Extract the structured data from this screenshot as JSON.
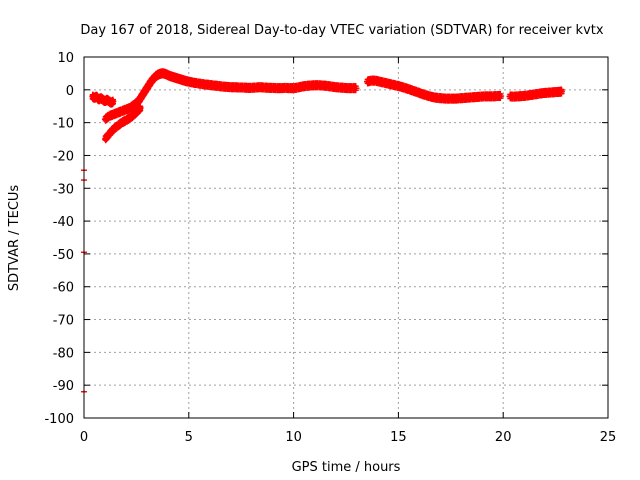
{
  "chart_data": {
    "type": "scatter",
    "title": "Day 167 of 2018, Sidereal Day-to-day VTEC variation (SDTVAR) for receiver kvtx",
    "xlabel": "GPS time / hours",
    "ylabel": "SDTVAR / TECUs",
    "xlim": [
      0,
      25
    ],
    "ylim": [
      -100,
      10
    ],
    "xticks": [
      0,
      5,
      10,
      15,
      20,
      25
    ],
    "yticks": [
      10,
      0,
      -10,
      -20,
      -30,
      -40,
      -50,
      -60,
      -70,
      -80,
      -90,
      -100
    ],
    "grid": true,
    "marker": "plus",
    "color": "#ff0000",
    "series": [
      {
        "name": "main-trace",
        "x": [
          0.4,
          0.5,
          0.6,
          0.7,
          0.8,
          0.9,
          1.0,
          1.1,
          1.2,
          1.3,
          1.4,
          2.6,
          2.7,
          2.8,
          2.9,
          3.0,
          3.1,
          3.2,
          3.3,
          3.4,
          3.5,
          3.6,
          3.7,
          3.8,
          3.9,
          4.0,
          4.1,
          4.2,
          4.3,
          4.4,
          4.5,
          4.6,
          4.7,
          4.8,
          4.9,
          5.0,
          5.2,
          5.4,
          5.6,
          5.8,
          6.0,
          6.2,
          6.4,
          6.6,
          6.8,
          7.0,
          7.2,
          7.4,
          7.6,
          7.8,
          8.0,
          8.2,
          8.4,
          8.6,
          8.8,
          9.0,
          9.2,
          9.4,
          9.6,
          9.8,
          10.0,
          10.2,
          10.4,
          10.6,
          10.8,
          11.0,
          11.2,
          11.4,
          11.6,
          11.8,
          12.0,
          12.2,
          12.4,
          12.6,
          12.8,
          13.0,
          13.5,
          13.7,
          13.9,
          14.1,
          14.3,
          14.5,
          14.7,
          14.9,
          15.1,
          15.3,
          15.5,
          15.7,
          15.9,
          16.1,
          16.3,
          16.5,
          16.7,
          16.9,
          17.1,
          17.3,
          17.5,
          17.7,
          17.9,
          18.1,
          18.3,
          18.5,
          18.7,
          18.9,
          19.1,
          19.3,
          19.5,
          19.7,
          19.9,
          20.3,
          20.5,
          20.7,
          20.9,
          21.1,
          21.3,
          21.5,
          21.7,
          21.9,
          22.1,
          22.3,
          22.5,
          22.7,
          22.8
        ],
        "y": [
          -2,
          -2.5,
          -2,
          -3,
          -2.5,
          -3,
          -3.5,
          -3,
          -3.5,
          -4,
          -3.5,
          -3.5,
          -2.5,
          -1.5,
          -0.5,
          0.5,
          1.5,
          2.5,
          3.3,
          4,
          4.5,
          4.8,
          5,
          5,
          4.8,
          4.5,
          4.2,
          4,
          3.8,
          3.6,
          3.4,
          3.2,
          3,
          2.8,
          2.6,
          2.5,
          2.2,
          2,
          1.8,
          1.6,
          1.5,
          1.3,
          1.2,
          1,
          0.9,
          0.8,
          0.8,
          0.7,
          0.7,
          0.6,
          0.6,
          0.7,
          0.8,
          0.7,
          0.6,
          0.6,
          0.5,
          0.5,
          0.6,
          0.5,
          0.5,
          0.7,
          1,
          1.2,
          1.3,
          1.4,
          1.4,
          1.3,
          1.2,
          1,
          0.8,
          0.7,
          0.6,
          0.5,
          0.5,
          0.5,
          2.5,
          2.8,
          2.8,
          2.5,
          2.2,
          1.9,
          1.6,
          1.3,
          1,
          0.6,
          0.2,
          -0.3,
          -0.7,
          -1.2,
          -1.6,
          -2,
          -2.3,
          -2.5,
          -2.6,
          -2.7,
          -2.7,
          -2.7,
          -2.6,
          -2.5,
          -2.4,
          -2.3,
          -2.2,
          -2.1,
          -2,
          -2,
          -2,
          -1.9,
          -1.9,
          -2,
          -2.1,
          -2,
          -1.9,
          -1.8,
          -1.6,
          -1.4,
          -1.2,
          -1,
          -0.9,
          -0.8,
          -0.7,
          -0.6,
          -0.5
        ]
      },
      {
        "name": "arc-upper",
        "x": [
          1.0,
          1.2,
          1.4,
          1.6,
          1.8,
          2.0,
          2.2,
          2.4,
          2.6
        ],
        "y": [
          -9,
          -8,
          -7.5,
          -7,
          -6.5,
          -6,
          -5.5,
          -4.5,
          -3.5
        ]
      },
      {
        "name": "arc-lower",
        "x": [
          1.0,
          1.2,
          1.4,
          1.6,
          1.8,
          2.0,
          2.2,
          2.4,
          2.6,
          2.7
        ],
        "y": [
          -15,
          -13.5,
          -12,
          -11,
          -10,
          -9.3,
          -8.5,
          -7.5,
          -6.2,
          -5.5
        ]
      },
      {
        "name": "outliers",
        "x": [
          0.0,
          0.0,
          0.0,
          0.0
        ],
        "y": [
          -24.5,
          -27.5,
          -49.5,
          -92
        ]
      }
    ]
  }
}
